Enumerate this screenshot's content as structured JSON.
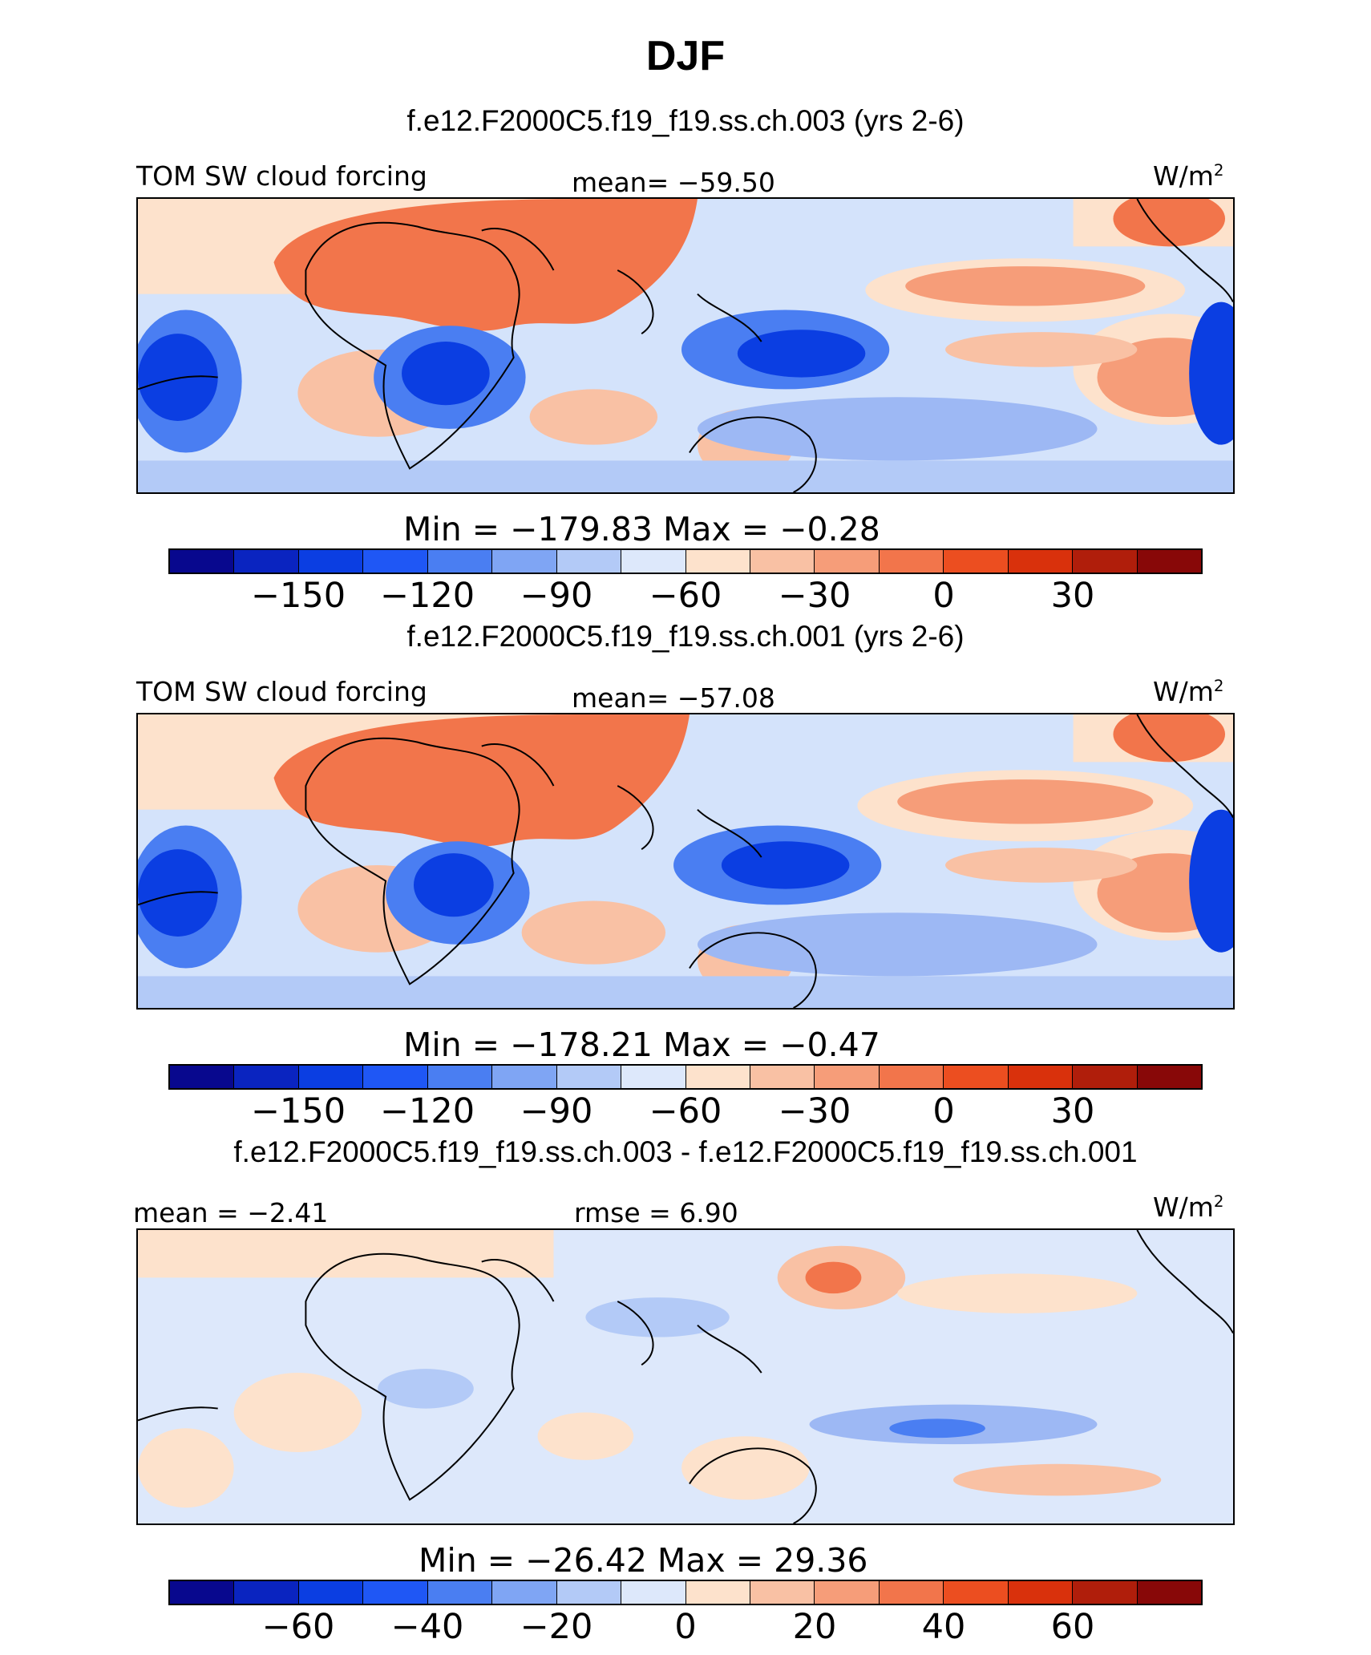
{
  "title": "DJF",
  "units": "W/m",
  "units_sup": "2",
  "panels": [
    {
      "subtitle": "f.e12.F2000C5.f19_f19.ss.ch.003 (yrs 2-6)",
      "left_label": "TOM SW cloud forcing",
      "center_label": "mean= −59.50",
      "stats": "Min  =  −179.83  Max  =   −0.28",
      "ticks": [
        "−150",
        "−120",
        "−90",
        "−60",
        "−30",
        "0",
        "30"
      ]
    },
    {
      "subtitle": "f.e12.F2000C5.f19_f19.ss.ch.001 (yrs 2-6)",
      "left_label": "TOM SW cloud forcing",
      "center_label": "mean= −57.08",
      "stats": "Min  =  −178.21  Max  =   −0.47",
      "ticks": [
        "−150",
        "−120",
        "−90",
        "−60",
        "−30",
        "0",
        "30"
      ]
    },
    {
      "subtitle": "f.e12.F2000C5.f19_f19.ss.ch.003 - f.e12.F2000C5.f19_f19.ss.ch.001",
      "left_label": "mean =  −2.41",
      "center_label": "rmse =    6.90",
      "stats": "Min  =  −26.42  Max  =   29.36",
      "ticks": [
        "−60",
        "−40",
        "−20",
        "0",
        "20",
        "40",
        "60"
      ]
    }
  ],
  "colors": {
    "palette": [
      "#08088e",
      "#0a24c0",
      "#0b3ee2",
      "#1f57f5",
      "#4a7ef2",
      "#7fa5f4",
      "#b3caf7",
      "#dde8fb",
      "#fde2cc",
      "#f9c1a4",
      "#f69d79",
      "#f2754b",
      "#ec4e20",
      "#d9310c",
      "#b01e0b",
      "#880808"
    ],
    "ocean_blue": "#cfe0fa",
    "deep_blue": "#0b3ee2",
    "mid_blue": "#4a7ef2",
    "light_blue": "#9db8f4",
    "orange": "#f2754b",
    "light_orange": "#f9c1a4",
    "pale_orange": "#fde2cc",
    "coast": "#000000"
  },
  "chart_data": [
    {
      "type": "heatmap",
      "title": "f.e12.F2000C5.f19_f19.ss.ch.003 (yrs 2-6)",
      "variable": "TOM SW cloud forcing",
      "season": "DJF",
      "units": "W/m2",
      "mean": -59.5,
      "min": -179.83,
      "max": -0.28,
      "colorbar_ticks": [
        -150,
        -120,
        -90,
        -60,
        -30,
        0,
        30
      ]
    },
    {
      "type": "heatmap",
      "title": "f.e12.F2000C5.f19_f19.ss.ch.001 (yrs 2-6)",
      "variable": "TOM SW cloud forcing",
      "season": "DJF",
      "units": "W/m2",
      "mean": -57.08,
      "min": -178.21,
      "max": -0.47,
      "colorbar_ticks": [
        -150,
        -120,
        -90,
        -60,
        -30,
        0,
        30
      ]
    },
    {
      "type": "heatmap",
      "title": "f.e12.F2000C5.f19_f19.ss.ch.003 - f.e12.F2000C5.f19_f19.ss.ch.001",
      "season": "DJF",
      "units": "W/m2",
      "mean": -2.41,
      "rmse": 6.9,
      "min": -26.42,
      "max": 29.36,
      "colorbar_ticks": [
        -60,
        -40,
        -20,
        0,
        20,
        40,
        60
      ]
    }
  ]
}
